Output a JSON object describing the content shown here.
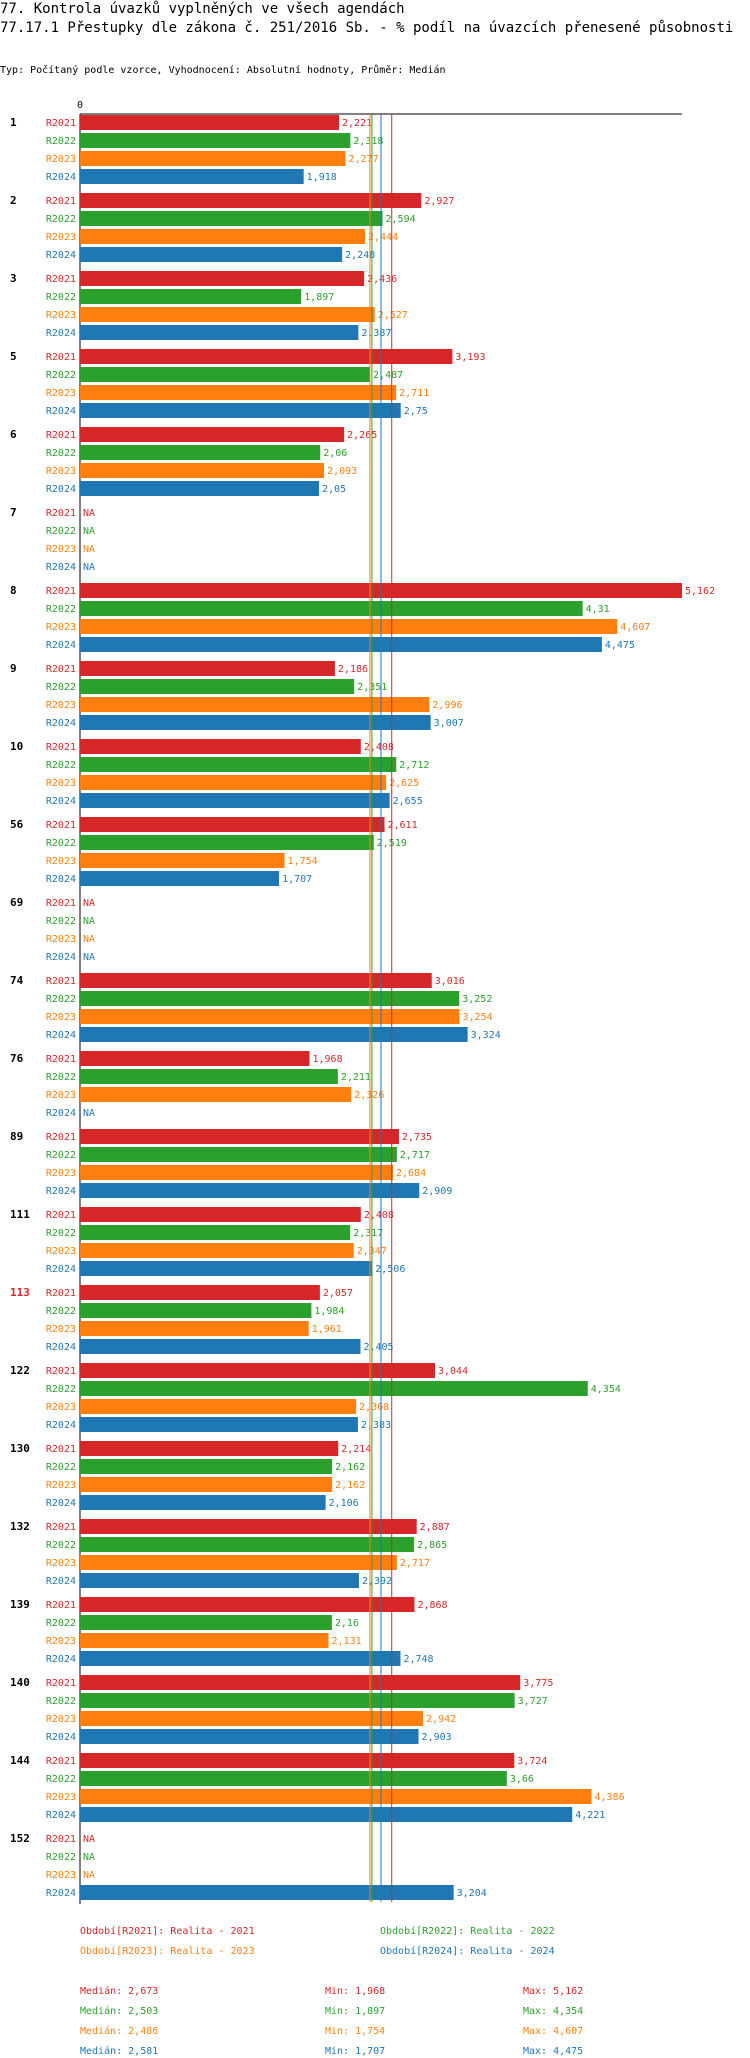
{
  "title": "77. Kontrola úvazků vyplněných ve všech agendách",
  "subtitle_line": "77.17.1 Přestupky dle zákona č. 251/2016 Sb. - % podíl na úvazcích přenesené působnosti",
  "meta": "Typ: Počítaný podle vzorce, Vyhodnocení: Absolutní hodnoty, Průměr: Medián",
  "colors": {
    "R2021": "#d62728",
    "R2022": "#2ca02c",
    "R2023": "#ff7f0e",
    "R2024": "#1f77b4",
    "highlight_group": "#d62728",
    "axis": "#000000"
  },
  "chart_data": {
    "type": "bar",
    "orientation": "horizontal",
    "axis_zero_label": "0",
    "xlim": [
      0,
      5.162
    ],
    "series_names": [
      "R2021",
      "R2022",
      "R2023",
      "R2024"
    ],
    "na_label": "NA",
    "highlighted_group": "113",
    "groups": [
      {
        "label": "1",
        "values": [
          2.221,
          2.318,
          2.277,
          1.918
        ]
      },
      {
        "label": "2",
        "values": [
          2.927,
          2.594,
          2.444,
          2.248
        ]
      },
      {
        "label": "3",
        "values": [
          2.436,
          1.897,
          2.527,
          2.387
        ]
      },
      {
        "label": "5",
        "values": [
          3.193,
          2.487,
          2.711,
          2.75
        ]
      },
      {
        "label": "6",
        "values": [
          2.265,
          2.06,
          2.093,
          2.05
        ]
      },
      {
        "label": "7",
        "values": [
          null,
          null,
          null,
          null
        ]
      },
      {
        "label": "8",
        "values": [
          5.162,
          4.31,
          4.607,
          4.475
        ]
      },
      {
        "label": "9",
        "values": [
          2.186,
          2.351,
          2.996,
          3.007
        ]
      },
      {
        "label": "10",
        "values": [
          2.408,
          2.712,
          2.625,
          2.655
        ]
      },
      {
        "label": "56",
        "values": [
          2.611,
          2.519,
          1.754,
          1.707
        ]
      },
      {
        "label": "69",
        "values": [
          null,
          null,
          null,
          null
        ]
      },
      {
        "label": "74",
        "values": [
          3.016,
          3.252,
          3.254,
          3.324
        ]
      },
      {
        "label": "76",
        "values": [
          1.968,
          2.211,
          2.326,
          null
        ]
      },
      {
        "label": "89",
        "values": [
          2.735,
          2.717,
          2.684,
          2.909
        ]
      },
      {
        "label": "111",
        "values": [
          2.408,
          2.317,
          2.347,
          2.506
        ]
      },
      {
        "label": "113",
        "values": [
          2.057,
          1.984,
          1.961,
          2.405
        ]
      },
      {
        "label": "122",
        "values": [
          3.044,
          4.354,
          2.368,
          2.383
        ]
      },
      {
        "label": "130",
        "values": [
          2.214,
          2.162,
          2.162,
          2.106
        ]
      },
      {
        "label": "132",
        "values": [
          2.887,
          2.865,
          2.717,
          2.392
        ]
      },
      {
        "label": "139",
        "values": [
          2.868,
          2.16,
          2.131,
          2.748
        ]
      },
      {
        "label": "140",
        "values": [
          3.775,
          3.727,
          2.942,
          2.903
        ]
      },
      {
        "label": "144",
        "values": [
          3.724,
          3.66,
          4.386,
          4.221
        ]
      },
      {
        "label": "152",
        "values": [
          null,
          null,
          null,
          3.204
        ]
      }
    ],
    "medians": [
      2.673,
      2.503,
      2.486,
      2.581
    ],
    "legend": [
      "Období[R2021]: Realita - 2021",
      "Období[R2022]: Realita - 2022",
      "Období[R2023]: Realita - 2023",
      "Období[R2024]: Realita - 2024"
    ],
    "stats": [
      {
        "median": "Medián: 2,673",
        "min": "Min: 1,968",
        "max": "Max: 5,162"
      },
      {
        "median": "Medián: 2,503",
        "min": "Min: 1,897",
        "max": "Max: 4,354"
      },
      {
        "median": "Medián: 2,486",
        "min": "Min: 1,754",
        "max": "Max: 4,607"
      },
      {
        "median": "Medián: 2,581",
        "min": "Min: 1,707",
        "max": "Max: 4,475"
      }
    ]
  }
}
